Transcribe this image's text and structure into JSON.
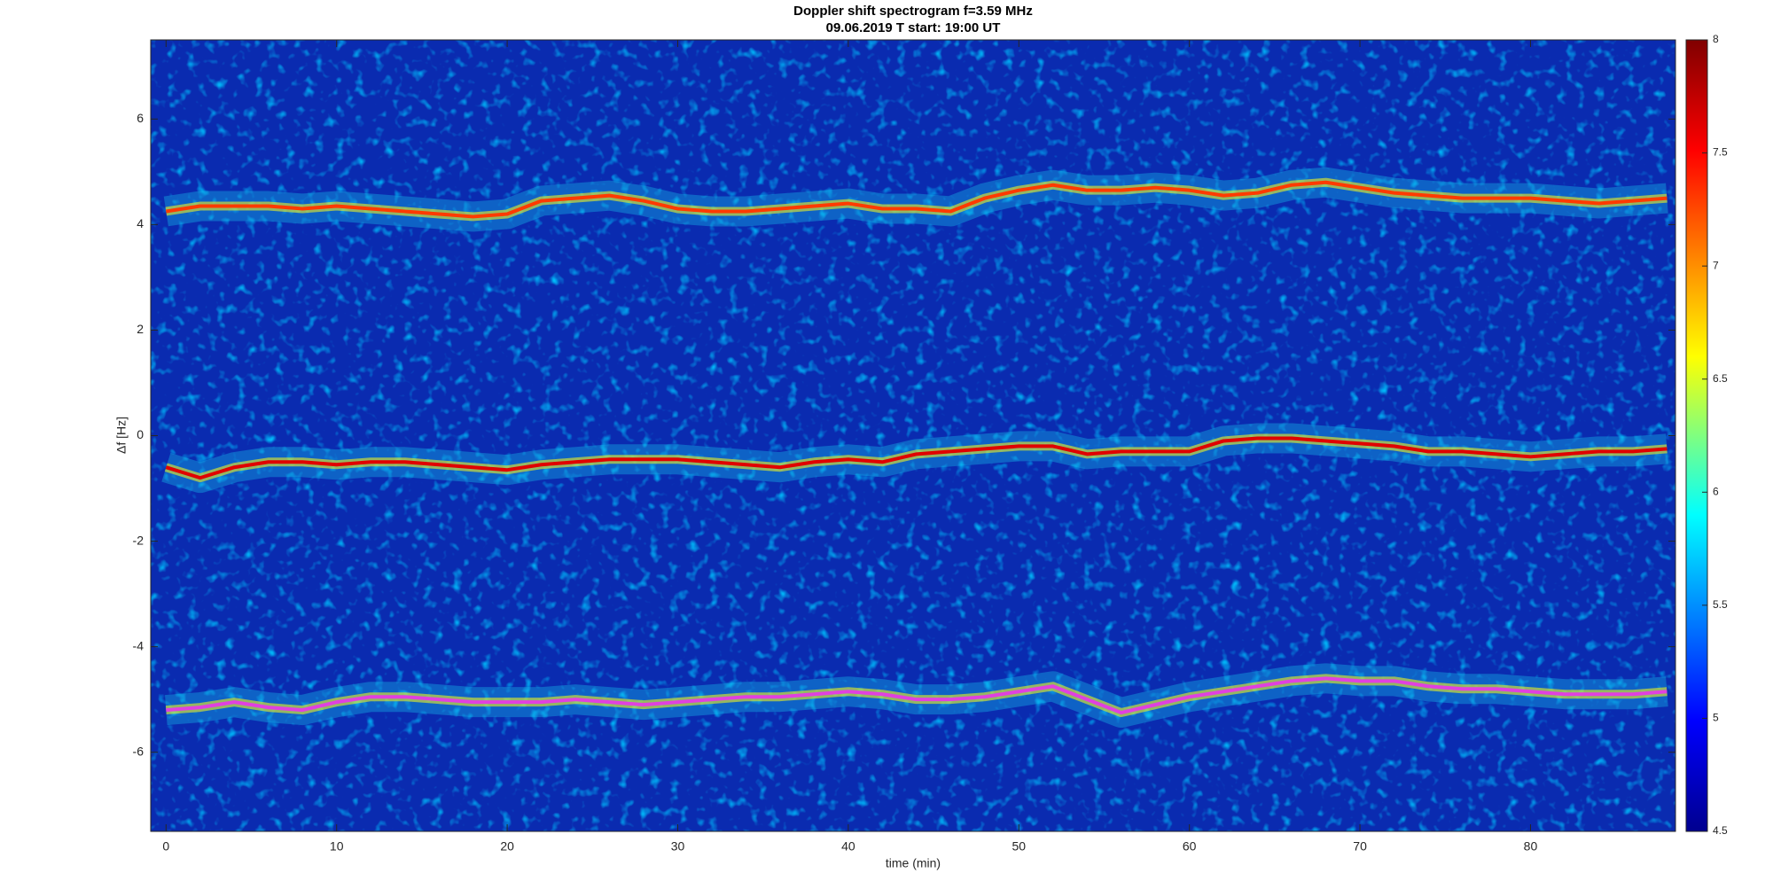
{
  "chart_data": {
    "type": "spectrogram",
    "title": "Doppler shift spectrogram f=3.59 MHz",
    "subtitle": "09.06.2019   T start: 19:00 UT",
    "x_label": "time (min)",
    "y_label": "Δf [Hz]",
    "xlim": [
      -0.9,
      88.5
    ],
    "xticks": [
      0,
      10,
      20,
      30,
      40,
      50,
      60,
      70,
      80
    ],
    "ylim": [
      -7.5,
      7.5
    ],
    "yticks": [
      -6,
      -4,
      -2,
      0,
      2,
      4,
      6
    ],
    "clim": [
      4.5,
      8
    ],
    "cticks": [
      4.5,
      5,
      5.5,
      6,
      6.5,
      7,
      7.5,
      8
    ],
    "colormap": "jet",
    "x": [
      0,
      2,
      4,
      6,
      8,
      10,
      12,
      14,
      16,
      18,
      20,
      22,
      24,
      26,
      28,
      30,
      32,
      34,
      36,
      38,
      40,
      42,
      44,
      46,
      48,
      50,
      52,
      54,
      56,
      58,
      60,
      62,
      64,
      66,
      68,
      70,
      72,
      74,
      76,
      78,
      80,
      82,
      84,
      86,
      88
    ],
    "traces": [
      {
        "color": "#ff3a00",
        "values": [
          4.25,
          4.35,
          4.35,
          4.35,
          4.3,
          4.35,
          4.3,
          4.25,
          4.2,
          4.15,
          4.2,
          4.45,
          4.5,
          4.55,
          4.45,
          4.3,
          4.25,
          4.25,
          4.3,
          4.35,
          4.4,
          4.3,
          4.3,
          4.25,
          4.5,
          4.65,
          4.75,
          4.65,
          4.65,
          4.7,
          4.65,
          4.55,
          4.6,
          4.75,
          4.8,
          4.7,
          4.6,
          4.55,
          4.5,
          4.5,
          4.5,
          4.45,
          4.4,
          4.45,
          4.5
        ]
      },
      {
        "color": "#e00000",
        "values": [
          -0.6,
          -0.8,
          -0.6,
          -0.5,
          -0.5,
          -0.55,
          -0.5,
          -0.5,
          -0.55,
          -0.6,
          -0.65,
          -0.55,
          -0.5,
          -0.45,
          -0.45,
          -0.45,
          -0.5,
          -0.55,
          -0.6,
          -0.5,
          -0.45,
          -0.5,
          -0.35,
          -0.3,
          -0.25,
          -0.2,
          -0.2,
          -0.35,
          -0.3,
          -0.3,
          -0.3,
          -0.1,
          -0.05,
          -0.05,
          -0.1,
          -0.15,
          -0.2,
          -0.3,
          -0.3,
          -0.35,
          -0.4,
          -0.35,
          -0.3,
          -0.3,
          -0.25
        ]
      },
      {
        "color": "#e040e0",
        "values": [
          -5.2,
          -5.15,
          -5.05,
          -5.15,
          -5.2,
          -5.05,
          -4.95,
          -4.95,
          -5.0,
          -5.05,
          -5.05,
          -5.05,
          -5.0,
          -5.05,
          -5.1,
          -5.05,
          -5.0,
          -4.95,
          -4.95,
          -4.9,
          -4.85,
          -4.9,
          -5.0,
          -5.0,
          -4.95,
          -4.85,
          -4.75,
          -5.0,
          -5.25,
          -5.1,
          -4.95,
          -4.85,
          -4.75,
          -4.65,
          -4.6,
          -4.65,
          -4.65,
          -4.75,
          -4.8,
          -4.8,
          -4.85,
          -4.9,
          -4.9,
          -4.9,
          -4.85
        ]
      }
    ]
  }
}
